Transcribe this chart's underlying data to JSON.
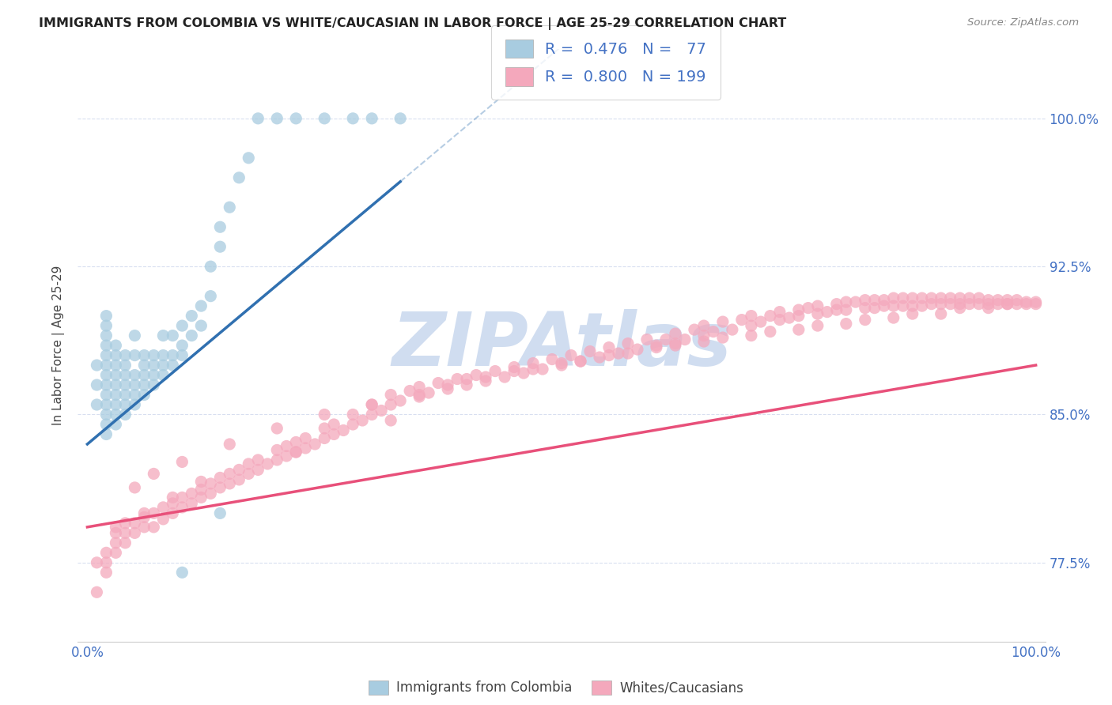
{
  "title": "IMMIGRANTS FROM COLOMBIA VS WHITE/CAUCASIAN IN LABOR FORCE | AGE 25-29 CORRELATION CHART",
  "source": "Source: ZipAtlas.com",
  "ylabel": "In Labor Force | Age 25-29",
  "xlim": [
    -0.01,
    1.01
  ],
  "ylim": [
    0.735,
    1.035
  ],
  "yticks": [
    0.775,
    0.85,
    0.925,
    1.0
  ],
  "ytick_labels": [
    "77.5%",
    "85.0%",
    "92.5%",
    "100.0%"
  ],
  "xtick_pos": [
    0.0,
    0.2,
    0.4,
    0.5,
    0.6,
    0.8,
    1.0
  ],
  "xtick_labels": [
    "0.0%",
    "",
    "",
    "",
    "",
    "",
    "100.0%"
  ],
  "blue_R": "0.476",
  "blue_N": "77",
  "pink_R": "0.800",
  "pink_N": "199",
  "legend_label_blue": "Immigrants from Colombia",
  "legend_label_pink": "Whites/Caucasians",
  "blue_dot_color": "#a8cce0",
  "pink_dot_color": "#f4a8bc",
  "blue_line_color": "#3070b0",
  "pink_line_color": "#e8507a",
  "watermark": "ZIPAtlas",
  "watermark_color": "#d0ddf0",
  "background_color": "#ffffff",
  "grid_color": "#d8dff0",
  "title_color": "#222222",
  "ylabel_color": "#444444",
  "tick_color": "#4472c4",
  "source_color": "#888888",
  "legend_text_color": "#4472c4",
  "blue_scatter_x": [
    0.01,
    0.01,
    0.01,
    0.02,
    0.02,
    0.02,
    0.02,
    0.02,
    0.02,
    0.02,
    0.02,
    0.02,
    0.02,
    0.02,
    0.02,
    0.02,
    0.03,
    0.03,
    0.03,
    0.03,
    0.03,
    0.03,
    0.03,
    0.03,
    0.03,
    0.04,
    0.04,
    0.04,
    0.04,
    0.04,
    0.04,
    0.04,
    0.05,
    0.05,
    0.05,
    0.05,
    0.05,
    0.05,
    0.06,
    0.06,
    0.06,
    0.06,
    0.06,
    0.07,
    0.07,
    0.07,
    0.07,
    0.08,
    0.08,
    0.08,
    0.08,
    0.09,
    0.09,
    0.09,
    0.1,
    0.1,
    0.1,
    0.11,
    0.11,
    0.12,
    0.12,
    0.13,
    0.13,
    0.14,
    0.14,
    0.15,
    0.16,
    0.17,
    0.18,
    0.2,
    0.22,
    0.25,
    0.28,
    0.3,
    0.33,
    0.14,
    0.1
  ],
  "blue_scatter_y": [
    0.855,
    0.865,
    0.875,
    0.84,
    0.845,
    0.85,
    0.855,
    0.86,
    0.865,
    0.87,
    0.875,
    0.88,
    0.885,
    0.89,
    0.895,
    0.9,
    0.845,
    0.85,
    0.855,
    0.86,
    0.865,
    0.87,
    0.875,
    0.88,
    0.885,
    0.85,
    0.855,
    0.86,
    0.865,
    0.87,
    0.875,
    0.88,
    0.855,
    0.86,
    0.865,
    0.87,
    0.88,
    0.89,
    0.86,
    0.865,
    0.87,
    0.875,
    0.88,
    0.865,
    0.87,
    0.875,
    0.88,
    0.87,
    0.875,
    0.88,
    0.89,
    0.875,
    0.88,
    0.89,
    0.88,
    0.885,
    0.895,
    0.89,
    0.9,
    0.895,
    0.905,
    0.91,
    0.925,
    0.935,
    0.945,
    0.955,
    0.97,
    0.98,
    1.0,
    1.0,
    1.0,
    1.0,
    1.0,
    1.0,
    1.0,
    0.8,
    0.77
  ],
  "pink_scatter_x": [
    0.01,
    0.01,
    0.02,
    0.02,
    0.02,
    0.03,
    0.03,
    0.03,
    0.04,
    0.04,
    0.04,
    0.05,
    0.05,
    0.06,
    0.06,
    0.07,
    0.07,
    0.08,
    0.08,
    0.09,
    0.09,
    0.1,
    0.1,
    0.11,
    0.11,
    0.12,
    0.12,
    0.13,
    0.13,
    0.14,
    0.14,
    0.15,
    0.15,
    0.16,
    0.16,
    0.17,
    0.17,
    0.18,
    0.18,
    0.19,
    0.2,
    0.2,
    0.21,
    0.21,
    0.22,
    0.22,
    0.23,
    0.23,
    0.24,
    0.25,
    0.25,
    0.26,
    0.26,
    0.27,
    0.28,
    0.28,
    0.29,
    0.3,
    0.3,
    0.31,
    0.32,
    0.32,
    0.33,
    0.34,
    0.35,
    0.35,
    0.36,
    0.37,
    0.38,
    0.39,
    0.4,
    0.41,
    0.42,
    0.43,
    0.44,
    0.45,
    0.46,
    0.47,
    0.48,
    0.49,
    0.5,
    0.51,
    0.52,
    0.53,
    0.54,
    0.55,
    0.56,
    0.57,
    0.58,
    0.59,
    0.6,
    0.61,
    0.62,
    0.62,
    0.63,
    0.64,
    0.65,
    0.65,
    0.66,
    0.67,
    0.68,
    0.69,
    0.7,
    0.7,
    0.71,
    0.72,
    0.73,
    0.73,
    0.74,
    0.75,
    0.75,
    0.76,
    0.77,
    0.77,
    0.78,
    0.79,
    0.79,
    0.8,
    0.8,
    0.81,
    0.82,
    0.82,
    0.83,
    0.83,
    0.84,
    0.84,
    0.85,
    0.85,
    0.86,
    0.86,
    0.87,
    0.87,
    0.88,
    0.88,
    0.89,
    0.89,
    0.9,
    0.9,
    0.91,
    0.91,
    0.92,
    0.92,
    0.93,
    0.93,
    0.94,
    0.94,
    0.95,
    0.95,
    0.96,
    0.96,
    0.97,
    0.97,
    0.98,
    0.98,
    0.99,
    0.99,
    1.0,
    1.0,
    0.4,
    0.45,
    0.5,
    0.55,
    0.6,
    0.65,
    0.7,
    0.75,
    0.8,
    0.85,
    0.9,
    0.95,
    0.3,
    0.35,
    0.25,
    0.2,
    0.15,
    0.1,
    0.07,
    0.05,
    0.38,
    0.42,
    0.47,
    0.52,
    0.57,
    0.62,
    0.67,
    0.72,
    0.77,
    0.82,
    0.87,
    0.92,
    0.97,
    0.03,
    0.06,
    0.09,
    0.12,
    0.22,
    0.32
  ],
  "pink_scatter_y": [
    0.775,
    0.76,
    0.78,
    0.77,
    0.775,
    0.78,
    0.785,
    0.79,
    0.785,
    0.79,
    0.795,
    0.79,
    0.795,
    0.793,
    0.798,
    0.793,
    0.8,
    0.797,
    0.803,
    0.8,
    0.805,
    0.803,
    0.808,
    0.805,
    0.81,
    0.808,
    0.812,
    0.81,
    0.815,
    0.813,
    0.818,
    0.815,
    0.82,
    0.817,
    0.822,
    0.82,
    0.825,
    0.822,
    0.827,
    0.825,
    0.827,
    0.832,
    0.829,
    0.834,
    0.831,
    0.836,
    0.833,
    0.838,
    0.835,
    0.838,
    0.843,
    0.84,
    0.845,
    0.842,
    0.845,
    0.85,
    0.847,
    0.85,
    0.855,
    0.852,
    0.855,
    0.86,
    0.857,
    0.862,
    0.859,
    0.864,
    0.861,
    0.866,
    0.863,
    0.868,
    0.865,
    0.87,
    0.867,
    0.872,
    0.869,
    0.874,
    0.871,
    0.876,
    0.873,
    0.878,
    0.875,
    0.88,
    0.877,
    0.882,
    0.879,
    0.884,
    0.881,
    0.886,
    0.883,
    0.888,
    0.885,
    0.888,
    0.886,
    0.891,
    0.888,
    0.893,
    0.89,
    0.895,
    0.892,
    0.897,
    0.893,
    0.898,
    0.895,
    0.9,
    0.897,
    0.9,
    0.898,
    0.902,
    0.899,
    0.903,
    0.9,
    0.904,
    0.901,
    0.905,
    0.902,
    0.906,
    0.903,
    0.907,
    0.903,
    0.907,
    0.904,
    0.908,
    0.904,
    0.908,
    0.905,
    0.908,
    0.905,
    0.909,
    0.905,
    0.909,
    0.905,
    0.909,
    0.905,
    0.909,
    0.906,
    0.909,
    0.906,
    0.909,
    0.906,
    0.909,
    0.906,
    0.909,
    0.906,
    0.909,
    0.906,
    0.909,
    0.906,
    0.908,
    0.906,
    0.908,
    0.906,
    0.908,
    0.906,
    0.908,
    0.906,
    0.907,
    0.906,
    0.907,
    0.868,
    0.872,
    0.876,
    0.88,
    0.884,
    0.887,
    0.89,
    0.893,
    0.896,
    0.899,
    0.901,
    0.904,
    0.855,
    0.86,
    0.85,
    0.843,
    0.835,
    0.826,
    0.82,
    0.813,
    0.865,
    0.869,
    0.873,
    0.877,
    0.881,
    0.885,
    0.889,
    0.892,
    0.895,
    0.898,
    0.901,
    0.904,
    0.906,
    0.793,
    0.8,
    0.808,
    0.816,
    0.831,
    0.847
  ]
}
